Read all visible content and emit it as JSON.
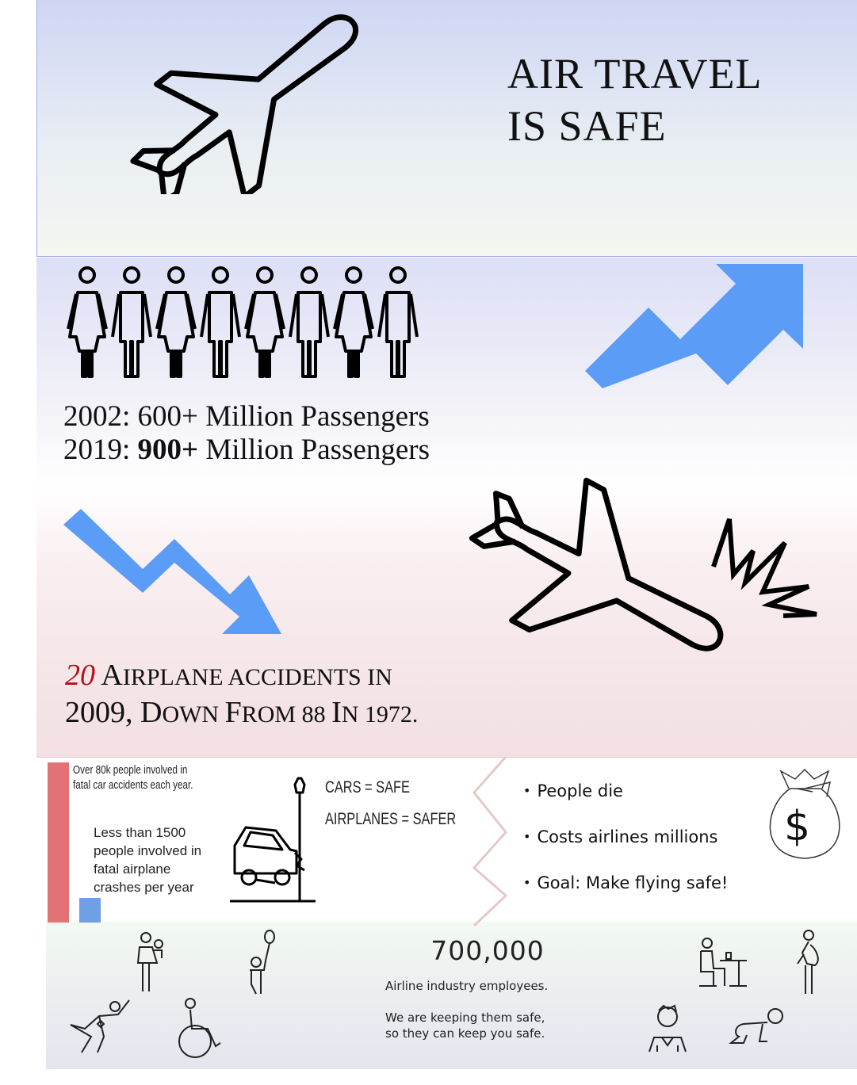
{
  "header": {
    "title_line1": "AIR TRAVEL",
    "title_line2": "IS SAFE",
    "icons": [
      "airplane-icon"
    ]
  },
  "passengers": {
    "line1": "2002: 600+ Million Passengers",
    "line2_year": "2019:",
    "line2_bold": "900+",
    "line2_rest": "Million Passengers",
    "icons": [
      "people-group-icon",
      "trend-up-arrow-icon"
    ]
  },
  "accidents": {
    "number": "20",
    "line1_rest_A": "A",
    "line1_rest_a": "IRPLANE ACCIDENTS IN",
    "line2_a": "2009, ",
    "line2_D": "D",
    "line2_b": "OWN ",
    "line2_F": "F",
    "line2_c": "ROM 88 ",
    "line2_I": "I",
    "line2_d": "N 1972.",
    "icons": [
      "trend-down-arrow-icon",
      "crashing-airplane-icon"
    ]
  },
  "comparison": {
    "car_text": "Over 80k people involved in fatal car accidents each year.",
    "car_text_line1": "Over 80k people involved in",
    "car_text_line2": "fatal car accidents each year.",
    "plane_text_line1": "Less than 1500",
    "plane_text_line2": "people involved in",
    "plane_text_line3": "fatal airplane",
    "plane_text_line4": "crashes per year",
    "car_bar_color": "#e37276",
    "plane_bar_color": "#6fa0e6",
    "cars_label": "CARS = SAFE",
    "airplanes_label": "AIRPLANES = SAFER",
    "icons": [
      "car-crash-icon",
      "money-bag-icon"
    ]
  },
  "bullets": [
    "People die",
    "Costs airlines millions",
    "Goal: Make flying safe!"
  ],
  "employees": {
    "count": "700,000",
    "label": "Airline industry employees.",
    "message_line1": "We are keeping them safe,",
    "message_line2": "so they can keep you safe.",
    "icons": [
      "parent-child-icon",
      "child-balloon-icon",
      "superhero-icon",
      "wheelchair-icon",
      "worker-desk-icon",
      "pregnant-woman-icon",
      "boy-icon",
      "crawling-baby-icon"
    ]
  },
  "colors": {
    "arrow_blue": "#5b9cf6",
    "accent_red": "#b3141a"
  }
}
